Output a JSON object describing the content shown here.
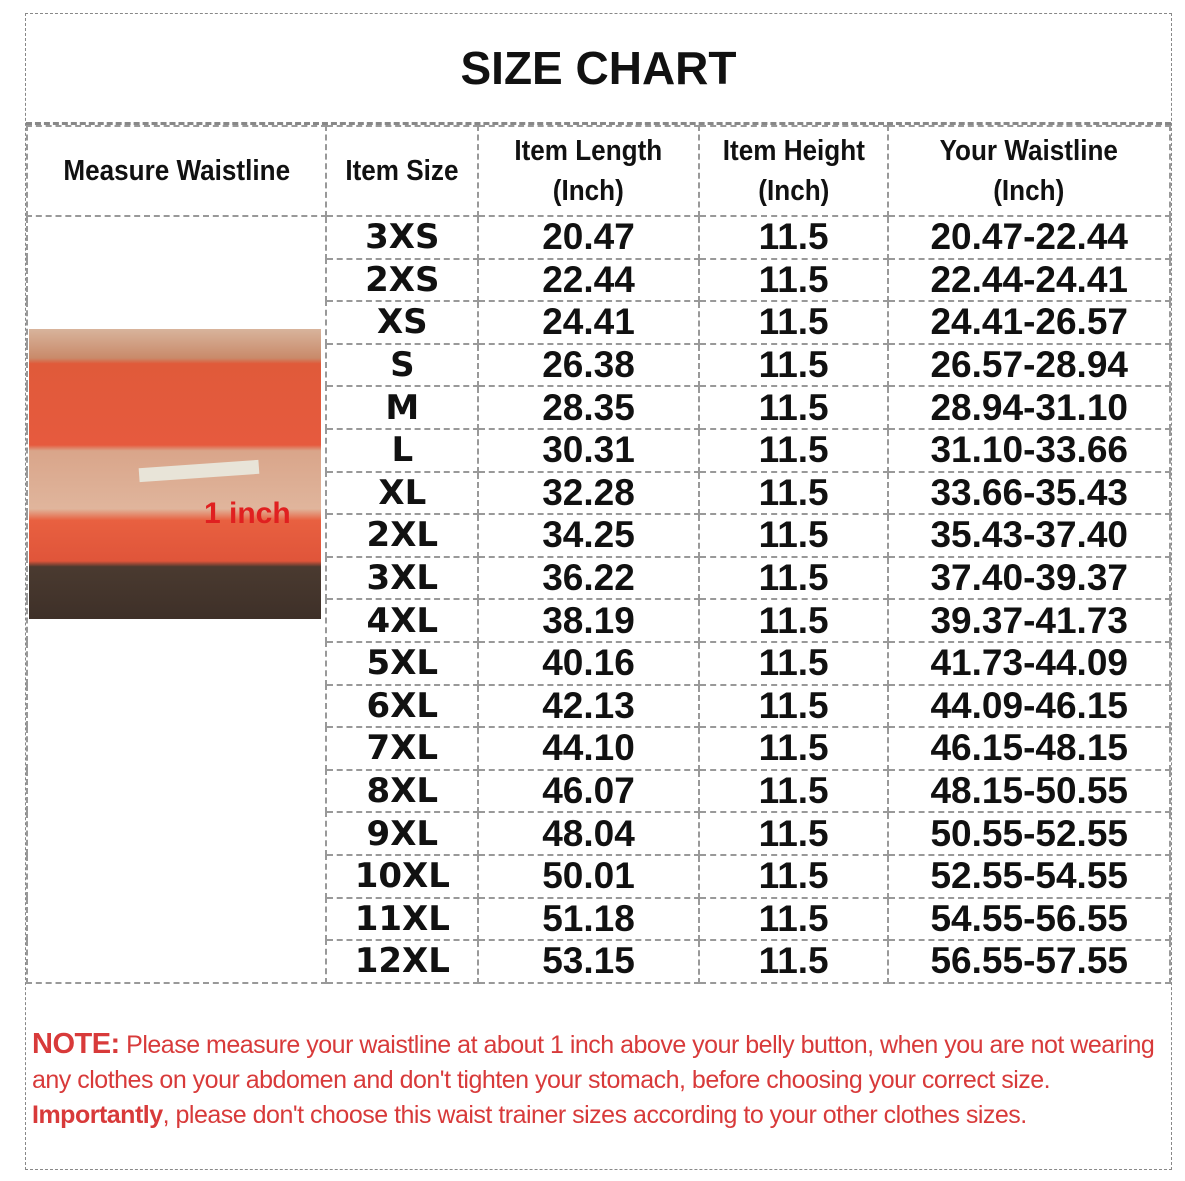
{
  "title": "SIZE CHART",
  "headers": [
    "Measure Waistline",
    "Item Size",
    "Item Length (Inch)",
    "Item Height (Inch)",
    "Your Waistline (Inch)"
  ],
  "photo_label": "1 inch",
  "rows": [
    [
      "3XS",
      "20.47",
      "11.5",
      "20.47-22.44"
    ],
    [
      "2XS",
      "22.44",
      "11.5",
      "22.44-24.41"
    ],
    [
      "XS",
      "24.41",
      "11.5",
      "24.41-26.57"
    ],
    [
      "S",
      "26.38",
      "11.5",
      "26.57-28.94"
    ],
    [
      "M",
      "28.35",
      "11.5",
      "28.94-31.10"
    ],
    [
      "L",
      "30.31",
      "11.5",
      "31.10-33.66"
    ],
    [
      "XL",
      "32.28",
      "11.5",
      "33.66-35.43"
    ],
    [
      "2XL",
      "34.25",
      "11.5",
      "35.43-37.40"
    ],
    [
      "3XL",
      "36.22",
      "11.5",
      "37.40-39.37"
    ],
    [
      "4XL",
      "38.19",
      "11.5",
      "39.37-41.73"
    ],
    [
      "5XL",
      "40.16",
      "11.5",
      "41.73-44.09"
    ],
    [
      "6XL",
      "42.13",
      "11.5",
      "44.09-46.15"
    ],
    [
      "7XL",
      "44.10",
      "11.5",
      "46.15-48.15"
    ],
    [
      "8XL",
      "46.07",
      "11.5",
      "48.15-50.55"
    ],
    [
      "9XL",
      "48.04",
      "11.5",
      "50.55-52.55"
    ],
    [
      "10XL",
      "50.01",
      "11.5",
      "52.55-54.55"
    ],
    [
      "11XL",
      "51.18",
      "11.5",
      "54.55-56.55"
    ],
    [
      "12XL",
      "53.15",
      "11.5",
      "56.55-57.55"
    ]
  ],
  "note": {
    "label": "NOTE:",
    "text1": " Please measure your waistline at about 1 inch above your belly button, when you are not wearing any clothes on your abdomen and don't tighten your stomach, before choosing your correct size. ",
    "bold": "Importantly",
    "text2": ", please don't choose this waist trainer sizes according to your other clothes sizes."
  }
}
